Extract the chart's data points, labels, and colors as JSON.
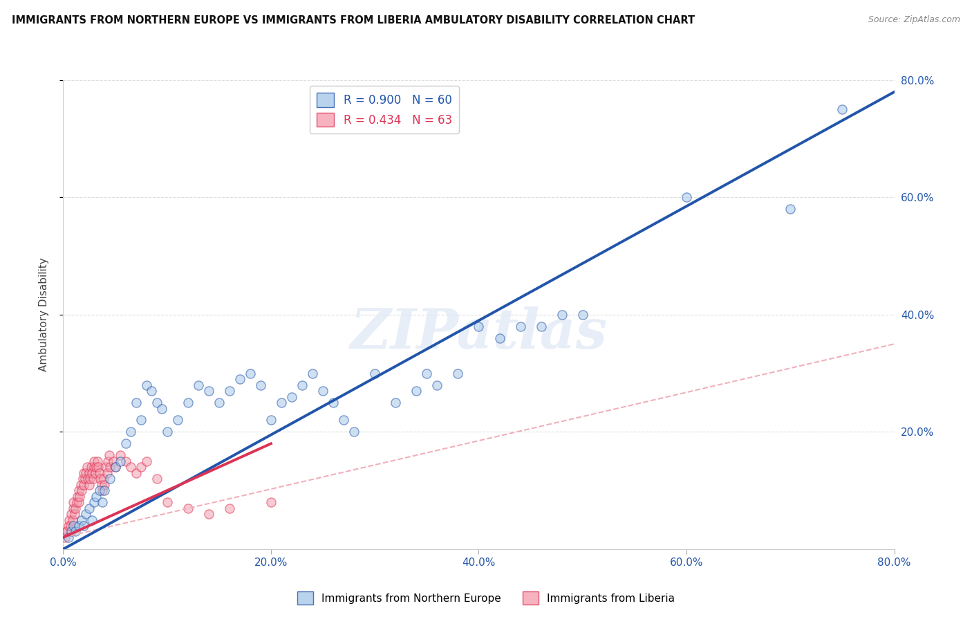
{
  "title": "IMMIGRANTS FROM NORTHERN EUROPE VS IMMIGRANTS FROM LIBERIA AMBULATORY DISABILITY CORRELATION CHART",
  "source": "Source: ZipAtlas.com",
  "ylabel": "Ambulatory Disability",
  "xlim": [
    0,
    0.8
  ],
  "ylim": [
    0,
    0.8
  ],
  "xtick_labels": [
    "0.0%",
    "20.0%",
    "40.0%",
    "60.0%",
    "80.0%"
  ],
  "xtick_values": [
    0.0,
    0.2,
    0.4,
    0.6,
    0.8
  ],
  "right_ytick_labels": [
    "20.0%",
    "40.0%",
    "60.0%",
    "80.0%"
  ],
  "right_ytick_values": [
    0.2,
    0.4,
    0.6,
    0.8
  ],
  "blue_R": "0.900",
  "blue_N": "60",
  "pink_R": "0.434",
  "pink_N": "63",
  "blue_color": "#a8c8e8",
  "pink_color": "#f4a0b0",
  "blue_line_color": "#2255aa",
  "pink_line_color": "#dd3355",
  "pink_dashed_color": "#f0b0bb",
  "watermark": "ZIPatlas",
  "legend_label_blue": "Immigrants from Northern Europe",
  "legend_label_pink": "Immigrants from Liberia",
  "blue_scatter_x": [
    0.005,
    0.008,
    0.01,
    0.012,
    0.015,
    0.018,
    0.02,
    0.022,
    0.025,
    0.028,
    0.03,
    0.032,
    0.035,
    0.038,
    0.04,
    0.045,
    0.05,
    0.055,
    0.06,
    0.065,
    0.07,
    0.075,
    0.08,
    0.085,
    0.09,
    0.095,
    0.1,
    0.11,
    0.12,
    0.13,
    0.14,
    0.15,
    0.16,
    0.17,
    0.18,
    0.19,
    0.2,
    0.21,
    0.22,
    0.23,
    0.24,
    0.25,
    0.26,
    0.27,
    0.28,
    0.3,
    0.32,
    0.34,
    0.35,
    0.36,
    0.38,
    0.4,
    0.42,
    0.44,
    0.46,
    0.48,
    0.5,
    0.6,
    0.7,
    0.75
  ],
  "blue_scatter_y": [
    0.02,
    0.03,
    0.04,
    0.03,
    0.04,
    0.05,
    0.04,
    0.06,
    0.07,
    0.05,
    0.08,
    0.09,
    0.1,
    0.08,
    0.1,
    0.12,
    0.14,
    0.15,
    0.18,
    0.2,
    0.25,
    0.22,
    0.28,
    0.27,
    0.25,
    0.24,
    0.2,
    0.22,
    0.25,
    0.28,
    0.27,
    0.25,
    0.27,
    0.29,
    0.3,
    0.28,
    0.22,
    0.25,
    0.26,
    0.28,
    0.3,
    0.27,
    0.25,
    0.22,
    0.2,
    0.3,
    0.25,
    0.27,
    0.3,
    0.28,
    0.3,
    0.38,
    0.36,
    0.38,
    0.38,
    0.4,
    0.4,
    0.6,
    0.58,
    0.75
  ],
  "pink_scatter_x": [
    0.002,
    0.003,
    0.004,
    0.005,
    0.006,
    0.007,
    0.008,
    0.009,
    0.01,
    0.01,
    0.011,
    0.012,
    0.013,
    0.014,
    0.015,
    0.015,
    0.016,
    0.017,
    0.018,
    0.019,
    0.02,
    0.02,
    0.021,
    0.022,
    0.023,
    0.024,
    0.025,
    0.025,
    0.026,
    0.027,
    0.028,
    0.029,
    0.03,
    0.03,
    0.031,
    0.032,
    0.033,
    0.034,
    0.035,
    0.036,
    0.037,
    0.038,
    0.039,
    0.04,
    0.041,
    0.042,
    0.043,
    0.044,
    0.045,
    0.048,
    0.05,
    0.055,
    0.06,
    0.065,
    0.07,
    0.075,
    0.08,
    0.09,
    0.1,
    0.12,
    0.14,
    0.16,
    0.2
  ],
  "pink_scatter_y": [
    0.02,
    0.03,
    0.03,
    0.04,
    0.05,
    0.04,
    0.06,
    0.05,
    0.07,
    0.08,
    0.06,
    0.07,
    0.08,
    0.09,
    0.08,
    0.1,
    0.09,
    0.11,
    0.1,
    0.12,
    0.11,
    0.13,
    0.12,
    0.13,
    0.14,
    0.12,
    0.11,
    0.13,
    0.12,
    0.14,
    0.13,
    0.12,
    0.14,
    0.15,
    0.13,
    0.14,
    0.15,
    0.14,
    0.13,
    0.12,
    0.11,
    0.1,
    0.12,
    0.11,
    0.14,
    0.13,
    0.15,
    0.16,
    0.14,
    0.15,
    0.14,
    0.16,
    0.15,
    0.14,
    0.13,
    0.14,
    0.15,
    0.12,
    0.08,
    0.07,
    0.06,
    0.07,
    0.08
  ],
  "blue_line_x": [
    0.0,
    0.8
  ],
  "blue_line_y": [
    0.0,
    0.78
  ],
  "pink_solid_line_x": [
    0.0,
    0.2
  ],
  "pink_solid_line_y": [
    0.02,
    0.18
  ],
  "pink_dashed_line_x": [
    0.0,
    0.8
  ],
  "pink_dashed_line_y": [
    0.02,
    0.35
  ],
  "background_color": "#ffffff",
  "grid_color": "#dddddd"
}
